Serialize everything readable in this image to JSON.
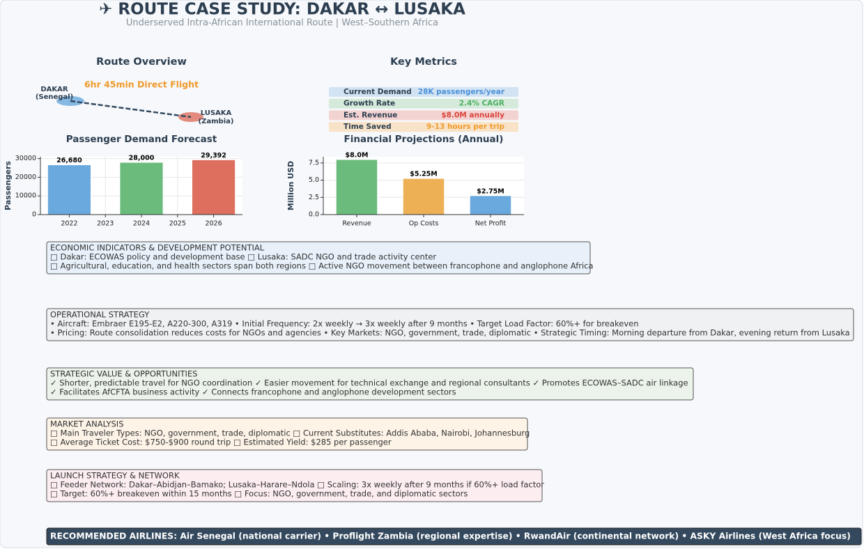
{
  "header": {
    "title": "✈ ROUTE CASE STUDY: DAKAR ↔ LUSAKA",
    "subtitle": "Underserved Intra-African International Route | West–Southern Africa"
  },
  "route_overview": {
    "title": "Route Overview",
    "flight": "6hr 45min Direct Flight",
    "origin": "DAKAR",
    "origin_country": "(Senegal)",
    "destination": "LUSAKA",
    "destination_country": "(Zambia)"
  },
  "key_metrics": {
    "title": "Key Metrics",
    "rows": [
      {
        "label": "Current Demand",
        "value": "28K passengers/year",
        "color": "#4a90d9",
        "bg": "#d2e4f3"
      },
      {
        "label": "Growth Rate",
        "value": "2.4% CAGR",
        "color": "#4caf60",
        "bg": "#d5eada"
      },
      {
        "label": "Est. Revenue",
        "value": "$8.0M annually",
        "color": "#d9453a",
        "bg": "#f3d3d2"
      },
      {
        "label": "Time Saved",
        "value": "9-13 hours per trip",
        "color": "#ef9a2a",
        "bg": "#f9e3c8"
      }
    ]
  },
  "chart_data": [
    {
      "type": "bar",
      "title": "Passenger Demand Forecast",
      "y_label": "Passengers",
      "x": [
        2022,
        2024,
        2026
      ],
      "values": [
        26680,
        28000,
        29392
      ],
      "value_labels": [
        "26,680",
        "28,000",
        "29,392"
      ],
      "colors": [
        "#6aa9dd",
        "#6abb7c",
        "#de6f5f"
      ],
      "bar_width": 1.2,
      "xlim": [
        2021.2,
        2026.8
      ],
      "xticks": [
        2022,
        2023,
        2024,
        2025,
        2026
      ],
      "ylim": [
        0,
        31000
      ],
      "yticks": [
        0,
        10000,
        20000,
        30000
      ],
      "grid": true
    },
    {
      "type": "bar",
      "title": "Financial Projections (Annual)",
      "y_label": "Million USD",
      "categories": [
        "Revenue",
        "Op Costs",
        "Net Profit"
      ],
      "values": [
        8.0,
        5.25,
        2.75
      ],
      "value_labels": [
        "$8.0M",
        "$5.25M",
        "$2.75M"
      ],
      "colors": [
        "#6abb7c",
        "#edb055",
        "#6aa9dd"
      ],
      "ylim": [
        0,
        8.4
      ],
      "yticks": [
        {
          "value": 0,
          "label": "0.0"
        },
        2.5,
        {
          "value": 5,
          "label": "5.0"
        },
        7.5
      ],
      "grid": true
    }
  ],
  "sections": [
    {
      "title": "ECONOMIC INDICATORS & DEVELOPMENT POTENTIAL",
      "bg": "#e8f1fa",
      "lines": [
        "□ Dakar: ECOWAS policy and development base  □ Lusaka: SADC NGO and trade activity center",
        "□ Agricultural, education, and health sectors span both regions  □ Active NGO movement between francophone and anglophone Africa"
      ]
    },
    {
      "title": "OPERATIONAL STRATEGY",
      "bg": "#eff1f3",
      "lines": [
        "• Aircraft: Embraer E195-E2, A220-300, A319  • Initial Frequency: 2x weekly → 3x weekly after 9 months  • Target Load Factor: 60%+ for breakeven",
        "• Pricing: Route consolidation reduces costs for NGOs and agencies  • Key Markets: NGO, government, trade, diplomatic  • Strategic Timing: Morning departure from Dakar, evening return from Lusaka"
      ]
    },
    {
      "title": "STRATEGIC VALUE & OPPORTUNITIES",
      "bg": "#ebf3ea",
      "lines": [
        "✓ Shorter, predictable travel for NGO coordination  ✓ Easier movement for technical exchange and regional consultants  ✓ Promotes ECOWAS–SADC air linkage",
        "✓ Facilitates AfCFTA business activity  ✓ Connects francophone and anglophone development sectors"
      ]
    },
    {
      "title": "MARKET ANALYSIS",
      "bg": "#fdf3e7",
      "lines": [
        "□ Main Traveler Types: NGO, government, trade, diplomatic  □ Current Substitutes: Addis Ababa, Nairobi, Johannesburg",
        "□ Average Ticket Cost: $750-$900 round trip  □ Estimated Yield: $285 per passenger"
      ]
    },
    {
      "title": "LAUNCH STRATEGY & NETWORK",
      "bg": "#fcedf1",
      "lines": [
        "□ Feeder Network: Dakar–Abidjan–Bamako; Lusaka–Harare–Ndola  □ Scaling: 3x weekly after 9 months if 60%+ load factor",
        "□ Target: 60%+ breakeven within 15 months  □ Focus: NGO, government, trade, and diplomatic sectors"
      ]
    }
  ],
  "footer": "RECOMMENDED AIRLINES: Air Senegal (national carrier) • Proflight Zambia (regional expertise) • RwandAir (continental network) • ASKY Airlines (West Africa focus)"
}
